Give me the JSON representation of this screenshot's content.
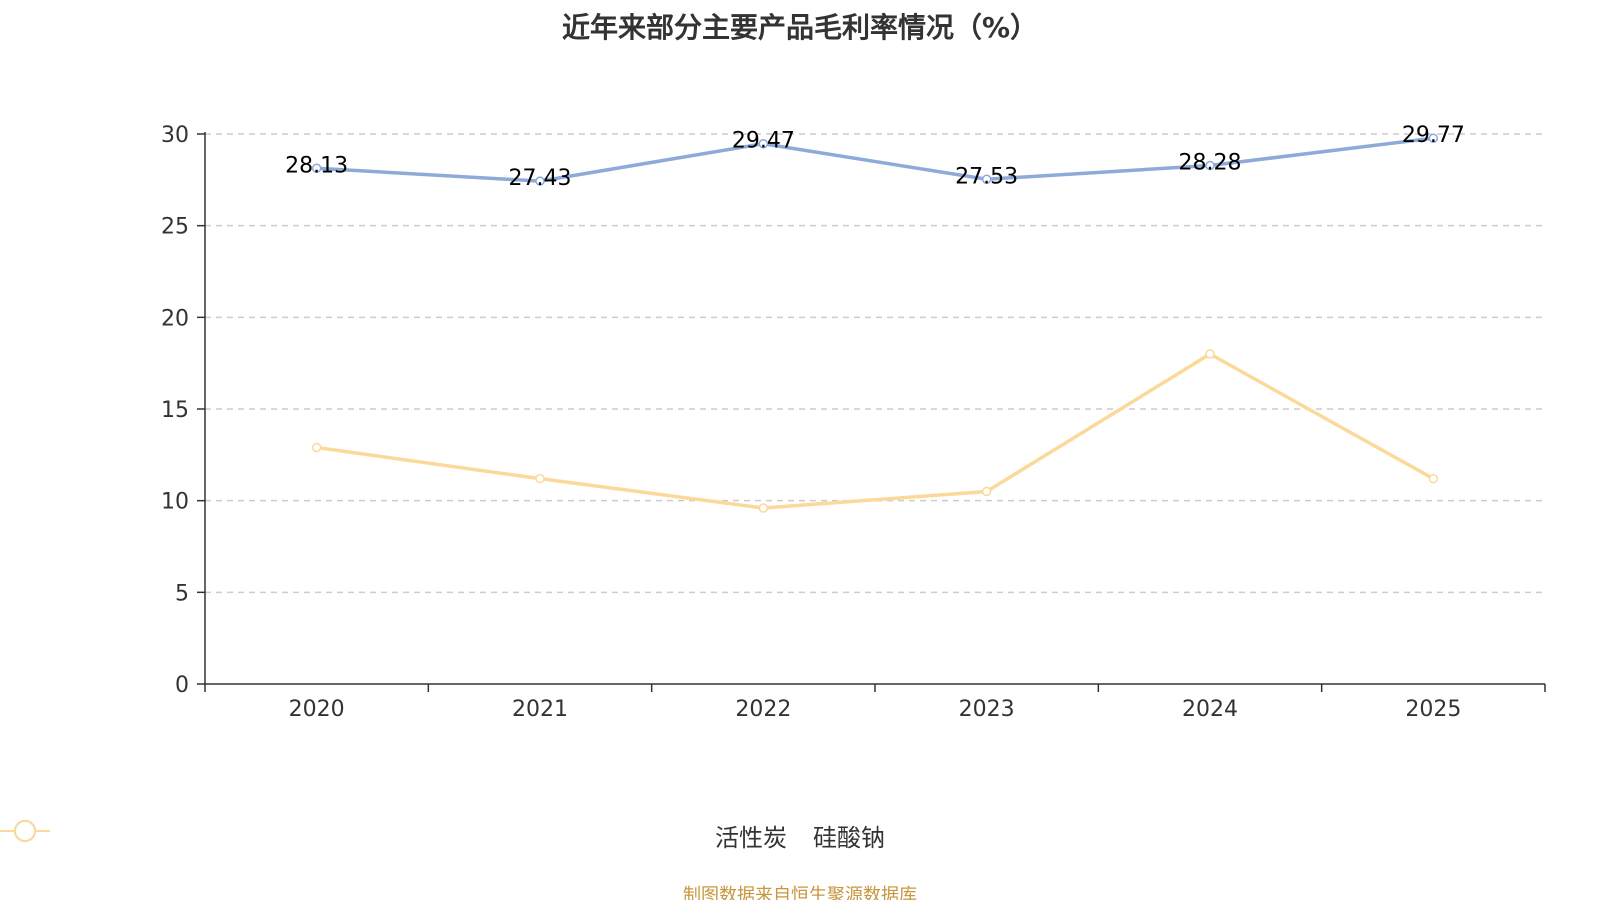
{
  "chart_data": {
    "type": "line",
    "title": "近年来部分主要产品毛利率情况（%）",
    "categories": [
      "2020",
      "2021",
      "2022",
      "2023",
      "2024",
      "2025"
    ],
    "series": [
      {
        "name": "活性炭",
        "color": "#8eaad9",
        "values": [
          28.13,
          27.43,
          29.47,
          27.53,
          28.28,
          29.77
        ],
        "labels": [
          "28.13",
          "27.43",
          "29.47",
          "27.53",
          "28.28",
          "29.77"
        ],
        "show_labels": true
      },
      {
        "name": "硅酸钠",
        "color": "#fbd99a",
        "values": [
          12.9,
          11.2,
          9.6,
          10.5,
          18.0,
          11.2
        ],
        "show_labels": false
      }
    ],
    "ylim": [
      0,
      30
    ],
    "yticks": [
      "0",
      "5",
      "10",
      "15",
      "20",
      "25",
      "30"
    ],
    "grid": true,
    "legend_position": "bottom-center"
  },
  "source_note": "制图数据来自恒生聚源数据库"
}
